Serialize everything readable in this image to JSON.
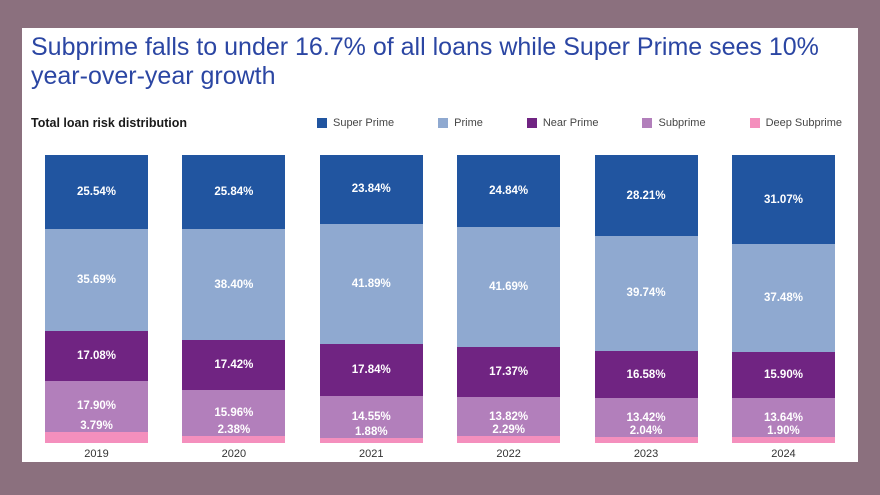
{
  "title": "Subprime falls to under 16.7% of all loans while Super Prime sees 10% year-over-year growth",
  "section_title": "Total loan risk distribution",
  "colors": {
    "background": "#8b707e",
    "panel": "#ffffff",
    "title_text": "#2b46a3"
  },
  "chart_data": {
    "type": "bar",
    "stacked": true,
    "title": "Total loan risk distribution",
    "categories": [
      "2019",
      "2020",
      "2021",
      "2022",
      "2023",
      "2024"
    ],
    "series": [
      {
        "name": "Super Prime",
        "color": "#2155a0",
        "values": [
          25.54,
          25.84,
          23.84,
          24.84,
          28.21,
          31.07
        ]
      },
      {
        "name": "Prime",
        "color": "#8fa9d0",
        "values": [
          35.69,
          38.4,
          41.89,
          41.69,
          39.74,
          37.48
        ]
      },
      {
        "name": "Near Prime",
        "color": "#702482",
        "values": [
          17.08,
          17.42,
          17.84,
          17.37,
          16.58,
          15.9
        ]
      },
      {
        "name": "Subprime",
        "color": "#b27fbb",
        "values": [
          17.9,
          15.96,
          14.55,
          13.82,
          13.42,
          13.64
        ]
      },
      {
        "name": "Deep Subprime",
        "color": "#f48fbd",
        "values": [
          3.79,
          2.38,
          1.88,
          2.29,
          2.04,
          1.9
        ]
      }
    ],
    "value_label_format": "0.00%",
    "ylim": [
      0,
      100
    ],
    "legend_position": "top",
    "grid": false
  }
}
